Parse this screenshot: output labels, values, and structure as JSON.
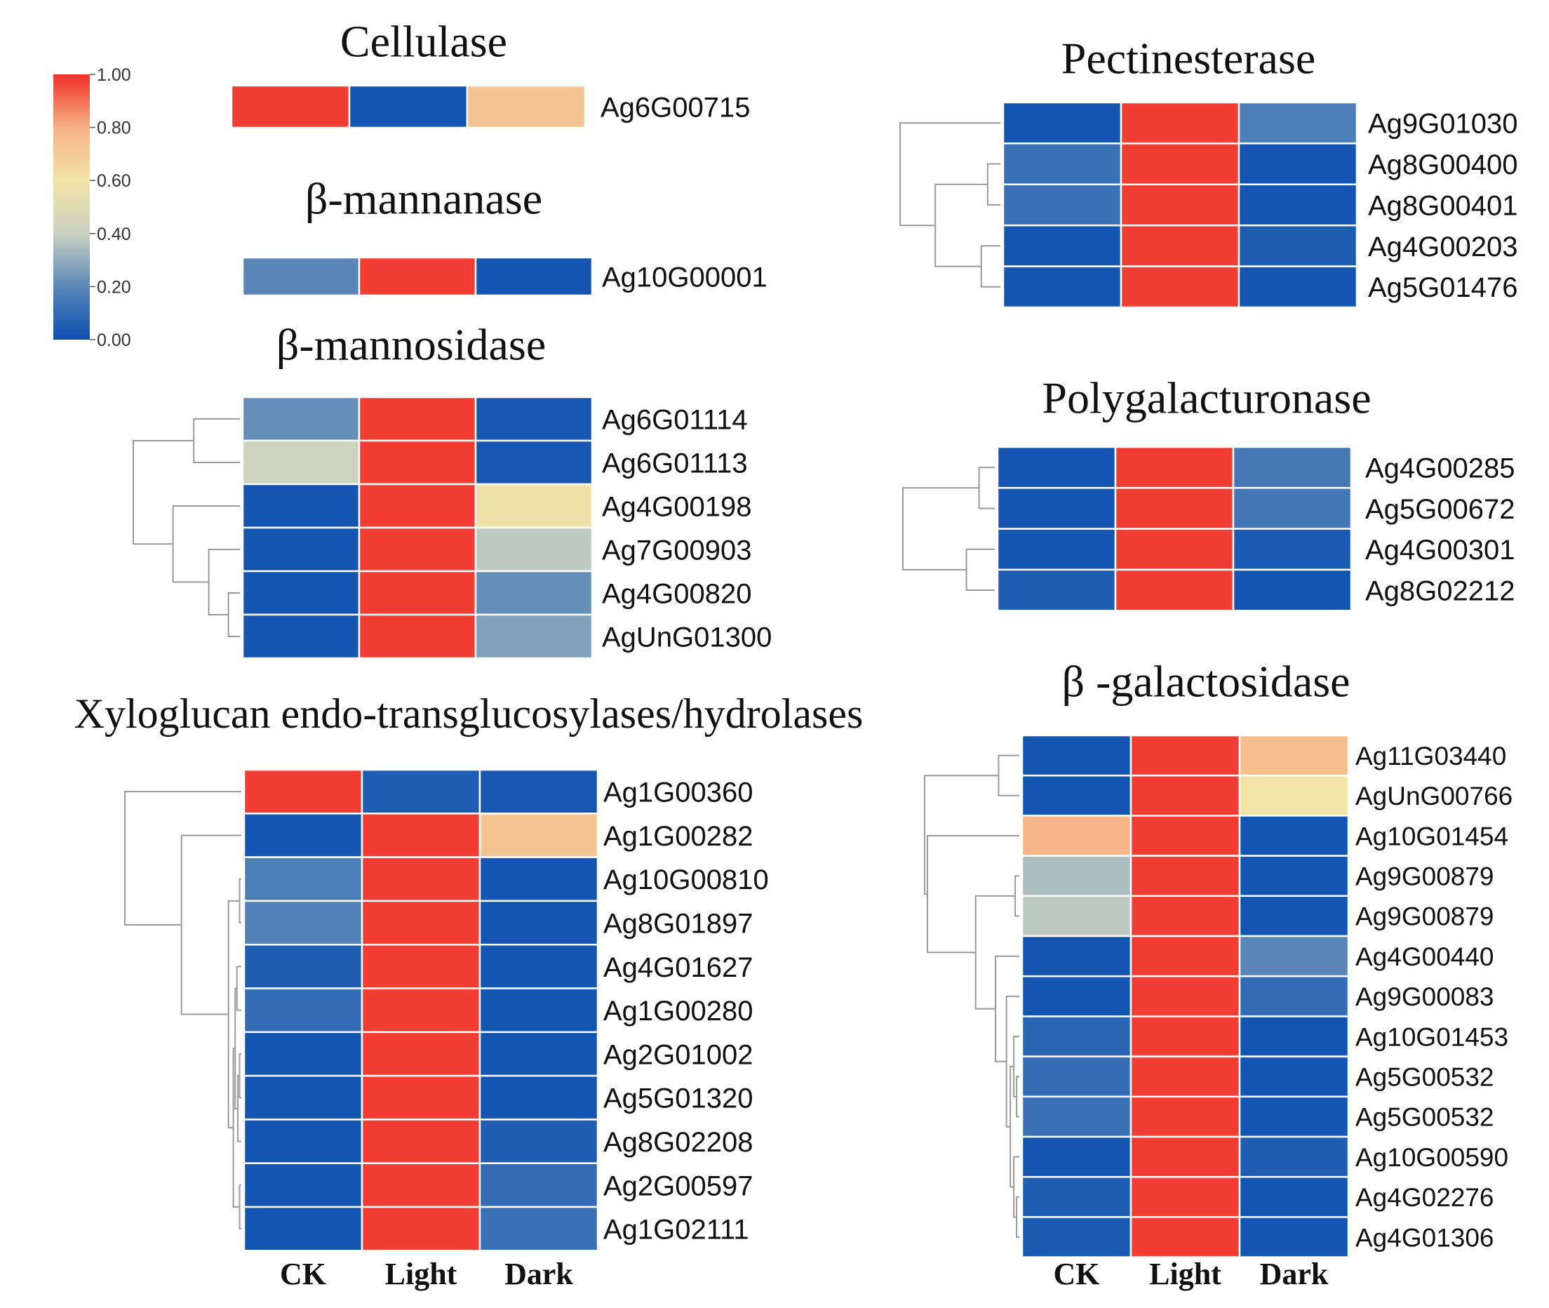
{
  "chart_data": {
    "type": "heatmap",
    "conditions": [
      "CK",
      "Light",
      "Dark"
    ],
    "colorbar": {
      "ticks": [
        "1.00",
        "0.80",
        "0.60",
        "0.40",
        "0.20",
        "0.00"
      ],
      "range": [
        0,
        1
      ],
      "stops": [
        "#0b4fb0",
        "#5a86b8",
        "#c9d1c2",
        "#f3e4a6",
        "#f6b183",
        "#f0302a"
      ]
    },
    "panels": [
      {
        "id": "cellulase",
        "title": "Cellulase",
        "genes": [
          "Ag6G00715"
        ],
        "values": [
          [
            0.98,
            0.02,
            0.72
          ]
        ],
        "clustered": false
      },
      {
        "id": "beta-mannanase",
        "title": "β-mannanase",
        "genes": [
          "Ag10G00001"
        ],
        "values": [
          [
            0.2,
            0.98,
            0.02
          ]
        ],
        "clustered": false
      },
      {
        "id": "beta-mannosidase",
        "title": "β-mannosidase",
        "genes": [
          "Ag6G01114",
          "Ag6G01113",
          "Ag4G00198",
          "Ag7G00903",
          "Ag4G00820",
          "AgUnG01300"
        ],
        "values": [
          [
            0.22,
            0.98,
            0.03
          ],
          [
            0.42,
            0.98,
            0.03
          ],
          [
            0.02,
            0.98,
            0.58
          ],
          [
            0.02,
            0.98,
            0.38
          ],
          [
            0.02,
            0.98,
            0.22
          ],
          [
            0.02,
            0.98,
            0.27
          ]
        ],
        "clustered": true
      },
      {
        "id": "xet",
        "title": "Xyloglucan endo-transglucosylases/hydrolases",
        "genes": [
          "Ag1G00360",
          "Ag1G00282",
          "Ag10G00810",
          "Ag8G01897",
          "Ag4G01627",
          "Ag1G00280",
          "Ag2G01002",
          "Ag5G01320",
          "Ag8G02208",
          "Ag2G00597",
          "Ag1G02111"
        ],
        "values": [
          [
            0.98,
            0.05,
            0.03
          ],
          [
            0.02,
            0.98,
            0.72
          ],
          [
            0.17,
            0.98,
            0.02
          ],
          [
            0.18,
            0.98,
            0.02
          ],
          [
            0.05,
            0.98,
            0.02
          ],
          [
            0.1,
            0.98,
            0.02
          ],
          [
            0.02,
            0.98,
            0.02
          ],
          [
            0.02,
            0.98,
            0.02
          ],
          [
            0.02,
            0.98,
            0.05
          ],
          [
            0.02,
            0.98,
            0.1
          ],
          [
            0.02,
            0.98,
            0.12
          ]
        ],
        "clustered": true,
        "show_conditions": true
      },
      {
        "id": "pectinesterase",
        "title": "Pectinesterase",
        "genes": [
          "Ag9G01030",
          "Ag8G00400",
          "Ag8G00401",
          "Ag4G00203",
          "Ag5G01476"
        ],
        "values": [
          [
            0.02,
            0.98,
            0.17
          ],
          [
            0.12,
            0.98,
            0.02
          ],
          [
            0.12,
            0.98,
            0.02
          ],
          [
            0.02,
            0.98,
            0.05
          ],
          [
            0.02,
            0.98,
            0.02
          ]
        ],
        "clustered": true
      },
      {
        "id": "polygalacturonase",
        "title": "Polygalacturonase",
        "genes": [
          "Ag4G00285",
          "Ag5G00672",
          "Ag4G00301",
          "Ag8G02212"
        ],
        "values": [
          [
            0.02,
            0.98,
            0.15
          ],
          [
            0.02,
            0.98,
            0.14
          ],
          [
            0.02,
            0.98,
            0.04
          ],
          [
            0.05,
            0.98,
            0.02
          ]
        ],
        "clustered": true
      },
      {
        "id": "beta-galactosidase",
        "title": "β -galactosidase",
        "genes": [
          "Ag11G03440",
          "AgUnG00766",
          "Ag10G01454",
          "Ag9G00879",
          "Ag9G00879",
          "Ag4G00440",
          "Ag9G00083",
          "Ag10G01453",
          "Ag5G00532",
          "Ag5G00532",
          "Ag10G00590",
          "Ag4G02276",
          "Ag4G01306"
        ],
        "values": [
          [
            0.02,
            0.98,
            0.75
          ],
          [
            0.02,
            0.98,
            0.6
          ],
          [
            0.78,
            0.98,
            0.02
          ],
          [
            0.35,
            0.98,
            0.02
          ],
          [
            0.38,
            0.98,
            0.02
          ],
          [
            0.02,
            0.98,
            0.2
          ],
          [
            0.02,
            0.98,
            0.1
          ],
          [
            0.08,
            0.98,
            0.02
          ],
          [
            0.1,
            0.98,
            0.02
          ],
          [
            0.12,
            0.98,
            0.02
          ],
          [
            0.02,
            0.98,
            0.05
          ],
          [
            0.05,
            0.98,
            0.02
          ],
          [
            0.04,
            0.98,
            0.02
          ]
        ],
        "clustered": true,
        "show_conditions": true
      }
    ]
  }
}
